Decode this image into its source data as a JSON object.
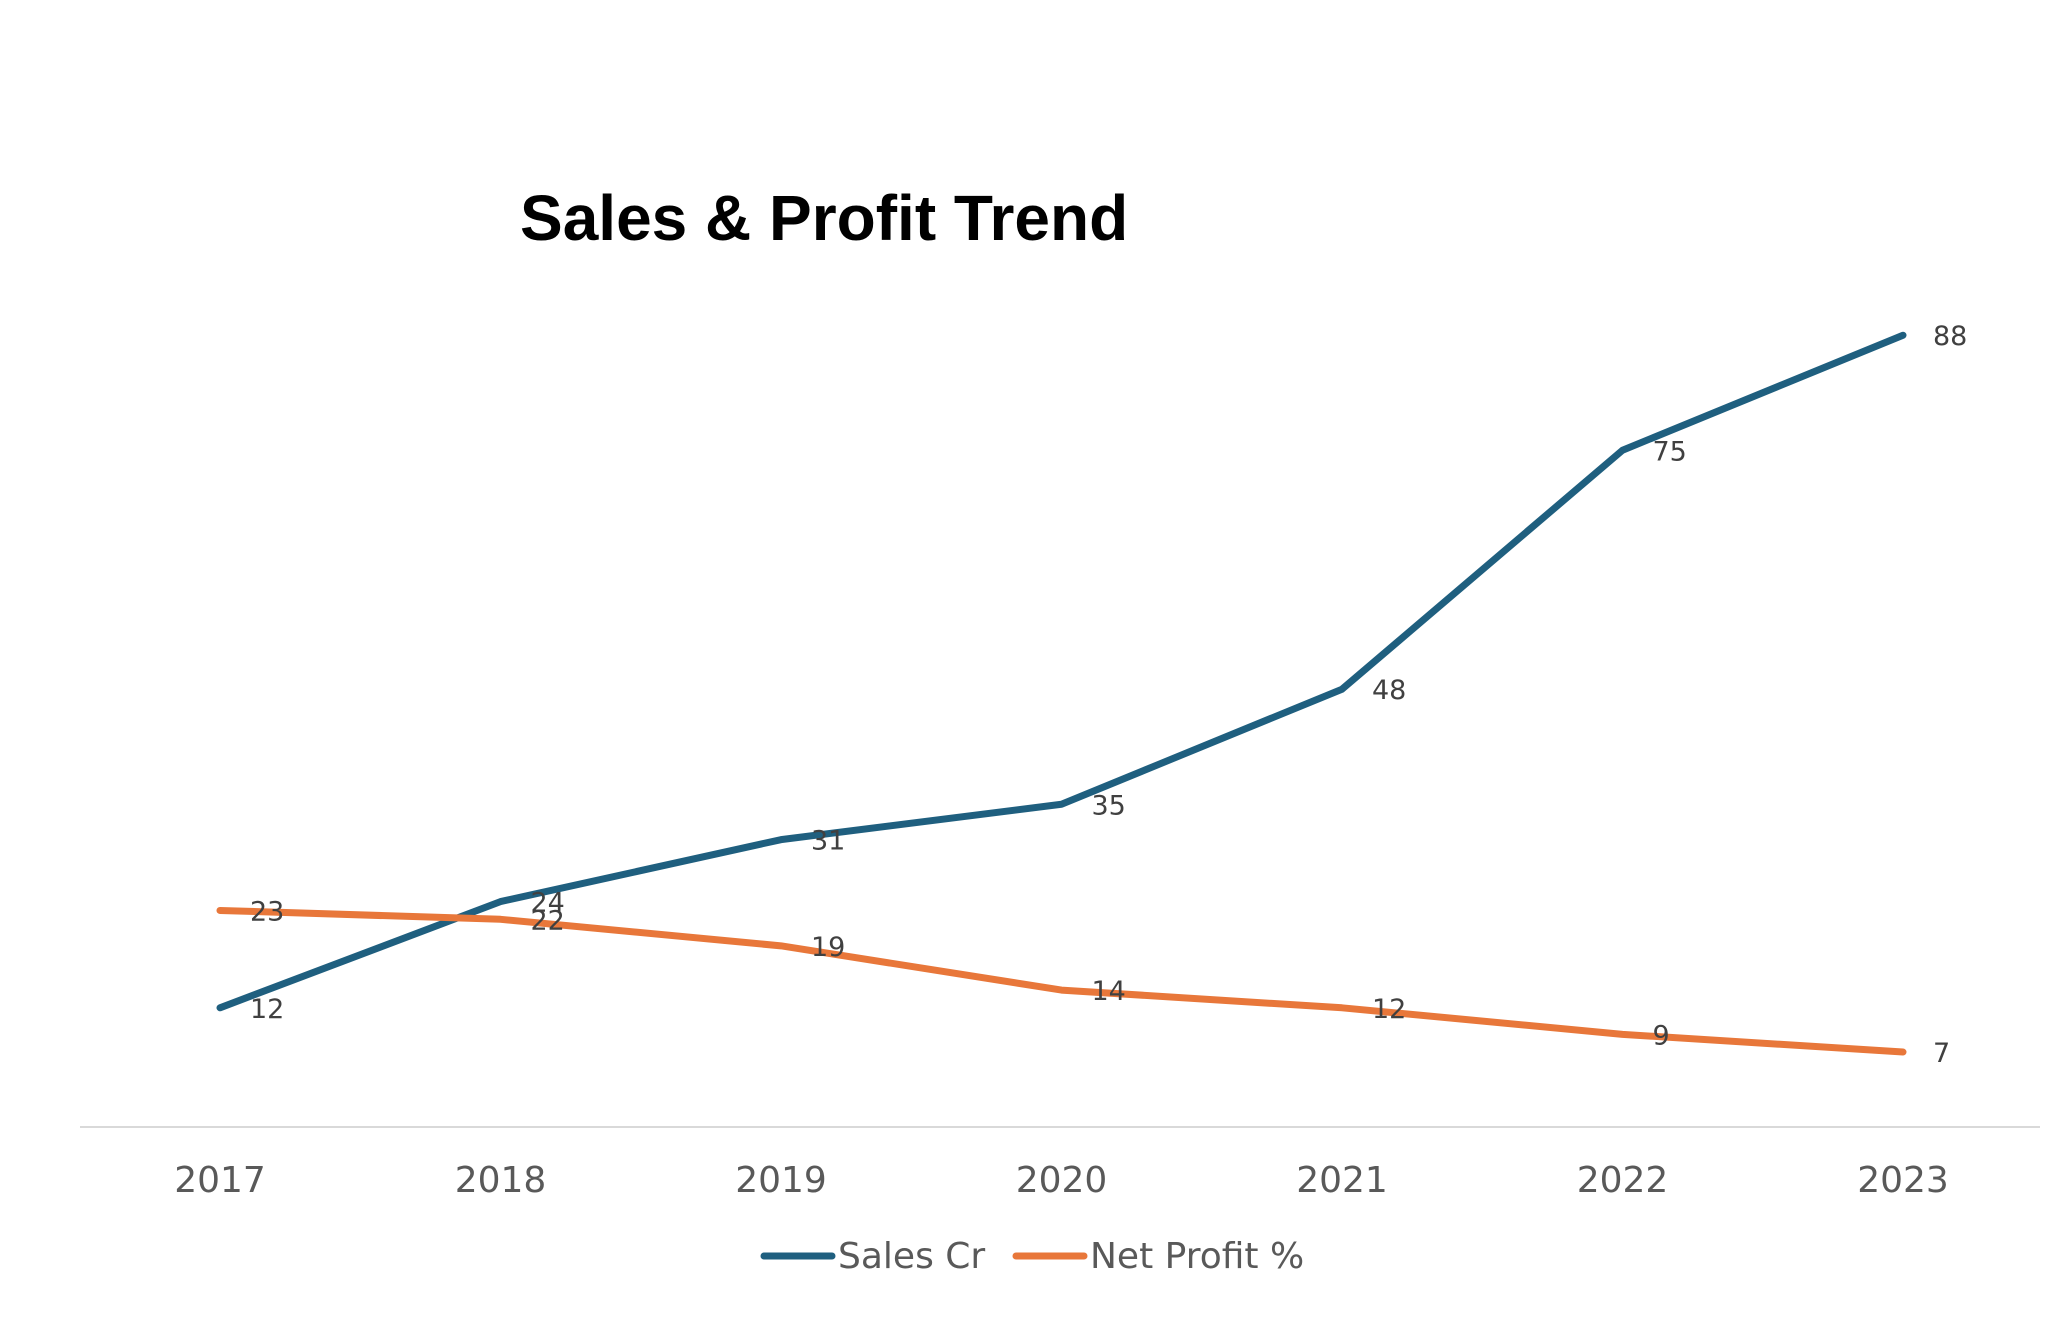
{
  "chart_data": {
    "type": "line",
    "title": "Sales & Profit Trend",
    "categories": [
      "2017",
      "2018",
      "2019",
      "2020",
      "2021",
      "2022",
      "2023"
    ],
    "series": [
      {
        "name": "Sales Cr",
        "color": "#1f5f7f",
        "values": [
          12,
          24,
          31,
          35,
          48,
          75,
          88
        ]
      },
      {
        "name": "Net Profit %",
        "color": "#e8773a",
        "values": [
          23,
          22,
          19,
          14,
          12,
          9,
          7
        ]
      }
    ],
    "ylim": [
      0,
      100
    ],
    "grid": false,
    "data_labels": true,
    "legend": "bottom"
  }
}
